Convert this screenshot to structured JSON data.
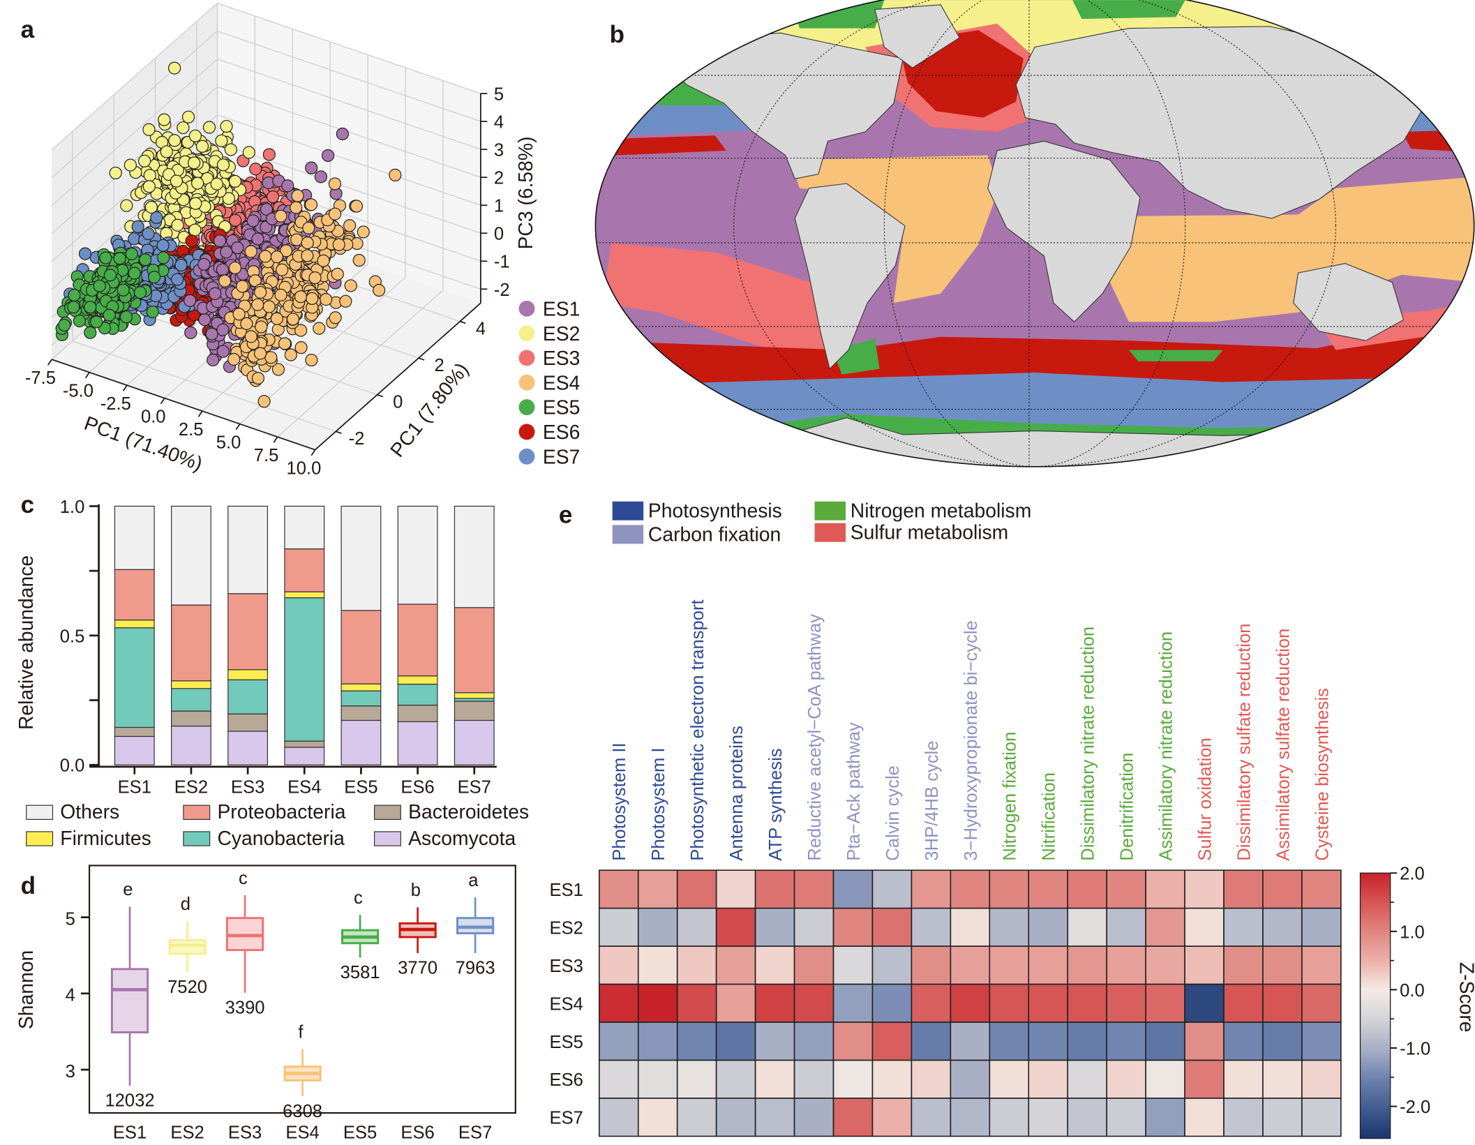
{
  "panels": {
    "a": "a",
    "b": "b",
    "c": "c",
    "d": "d",
    "e": "e"
  },
  "es_colors": {
    "ES1": "#a876ad",
    "ES2": "#f5f08c",
    "ES3": "#f07272",
    "ES4": "#f8c278",
    "ES5": "#47ad48",
    "ES6": "#c8190f",
    "ES7": "#6e8fc6"
  },
  "chart_data": [
    {
      "panel": "a",
      "type": "scatter3d",
      "xlabel": "PC1 (71.40%)",
      "ylabel": "PC1 (7.80%)",
      "zlabel": "PC3 (6.58%)",
      "xlim": [
        -7.5,
        10
      ],
      "ylim": [
        -3,
        5
      ],
      "zlim": [
        -2.5,
        5
      ],
      "xticks": [
        "-7.5",
        "-5.0",
        "-2.5",
        "0.0",
        "2.5",
        "5.0",
        "7.5",
        "10.0"
      ],
      "yticks": [
        "-2",
        "0",
        "2",
        "4"
      ],
      "zticks": [
        "5",
        "4",
        "3",
        "2",
        "1",
        "0",
        "-1",
        "-2"
      ],
      "grid": true,
      "legend": "right",
      "series": [
        {
          "name": "ES1",
          "color": "#a876ad",
          "center": [
            3,
            -1,
            1.2
          ],
          "spread": [
            0.7,
            1.5,
            1.1
          ]
        },
        {
          "name": "ES2",
          "color": "#f5f08c",
          "center": [
            -3.5,
            0.5,
            2.2
          ],
          "spread": [
            1.3,
            0.8,
            0.9
          ]
        },
        {
          "name": "ES3",
          "color": "#f07272",
          "center": [
            0,
            0.5,
            1.7
          ],
          "spread": [
            1.0,
            0.8,
            0.6
          ]
        },
        {
          "name": "ES4",
          "color": "#f8c278",
          "center": [
            5.5,
            -1,
            1.0
          ],
          "spread": [
            0.6,
            1.6,
            1.1
          ]
        },
        {
          "name": "ES5",
          "color": "#47ad48",
          "center": [
            -7,
            -1,
            -1.3
          ],
          "spread": [
            1.0,
            0.7,
            0.35
          ]
        },
        {
          "name": "ES6",
          "color": "#c8190f",
          "center": [
            -1.5,
            -0.5,
            -0.3
          ],
          "spread": [
            0.6,
            0.5,
            0.45
          ]
        },
        {
          "name": "ES7",
          "color": "#6e8fc6",
          "center": [
            -4,
            -1,
            -0.2
          ],
          "spread": [
            1.2,
            0.6,
            0.4
          ]
        }
      ]
    },
    {
      "panel": "b",
      "type": "map",
      "projection": "Robinson",
      "legend": "shared with panel a (ES1–ES7)",
      "land_color": "#d9d9d9"
    },
    {
      "panel": "c",
      "type": "bar",
      "stacked": true,
      "categories": [
        "ES1",
        "ES2",
        "ES3",
        "ES4",
        "ES5",
        "ES6",
        "ES7"
      ],
      "ylabel": "Relative abundance",
      "ylim": [
        0,
        1
      ],
      "yticks": [
        "0.0",
        "0.5",
        "1.0"
      ],
      "series": [
        {
          "name": "Ascomycota",
          "color": "#d8c8ec",
          "values": [
            0.11,
            0.15,
            0.13,
            0.068,
            0.172,
            0.167,
            0.172
          ]
        },
        {
          "name": "Bacteroidetes",
          "color": "#b8a898",
          "values": [
            0.035,
            0.058,
            0.067,
            0.024,
            0.056,
            0.064,
            0.074
          ]
        },
        {
          "name": "Cyanobacteria",
          "color": "#72cabb",
          "values": [
            0.385,
            0.087,
            0.132,
            0.554,
            0.058,
            0.081,
            0.011
          ]
        },
        {
          "name": "Firmicutes",
          "color": "#fded52",
          "values": [
            0.03,
            0.03,
            0.039,
            0.023,
            0.027,
            0.032,
            0.022
          ]
        },
        {
          "name": "Proteobacteria",
          "color": "#f09a8c",
          "values": [
            0.195,
            0.293,
            0.294,
            0.166,
            0.284,
            0.277,
            0.329
          ]
        },
        {
          "name": "Others",
          "color": "#f0f0f0",
          "values": [
            0.245,
            0.382,
            0.338,
            0.165,
            0.403,
            0.379,
            0.392
          ]
        }
      ],
      "legend_order": [
        "Others",
        "Proteobacteria",
        "Bacteroidetes",
        "Firmicutes",
        "Cyanobacteria",
        "Ascomycota"
      ]
    },
    {
      "panel": "d",
      "type": "box",
      "categories": [
        "ES1",
        "ES2",
        "ES3",
        "ES4",
        "ES5",
        "ES6",
        "ES7"
      ],
      "ylabel": "Shannon",
      "ylim": [
        2.47,
        5.65
      ],
      "yticks": [
        "3",
        "4",
        "5"
      ],
      "boxes": [
        {
          "name": "ES1",
          "whisker_low": 2.79,
          "q1": 3.49,
          "median": 4.05,
          "q3": 4.32,
          "whisker_high": 5.14,
          "letter": "e",
          "n": "12032"
        },
        {
          "name": "ES2",
          "whisker_low": 4.28,
          "q1": 4.52,
          "median": 4.63,
          "q3": 4.7,
          "whisker_high": 4.95,
          "letter": "d",
          "n": "7520"
        },
        {
          "name": "ES3",
          "whisker_low": 4.01,
          "q1": 4.57,
          "median": 4.76,
          "q3": 4.99,
          "whisker_high": 5.29,
          "letter": "c",
          "n": "3390"
        },
        {
          "name": "ES4",
          "whisker_low": 2.65,
          "q1": 2.86,
          "median": 2.95,
          "q3": 3.04,
          "whisker_high": 3.27,
          "letter": "f",
          "n": "6308"
        },
        {
          "name": "ES5",
          "whisker_low": 4.47,
          "q1": 4.66,
          "median": 4.74,
          "q3": 4.83,
          "whisker_high": 5.03,
          "letter": "c",
          "n": "3581"
        },
        {
          "name": "ES6",
          "whisker_low": 4.53,
          "q1": 4.74,
          "median": 4.84,
          "q3": 4.92,
          "whisker_high": 5.13,
          "letter": "b",
          "n": "3770"
        },
        {
          "name": "ES7",
          "whisker_low": 4.53,
          "q1": 4.79,
          "median": 4.87,
          "q3": 4.99,
          "whisker_high": 5.26,
          "letter": "a",
          "n": "7963"
        }
      ]
    },
    {
      "panel": "e",
      "type": "heatmap",
      "groups": [
        {
          "name": "Photosynthesis",
          "color": "#2e4a94"
        },
        {
          "name": "Carbon fixation",
          "color": "#8e93c0"
        },
        {
          "name": "Nitrogen metabolism",
          "color": "#5aaa3c"
        },
        {
          "name": "Sulfur metabolism",
          "color": "#e05a55"
        }
      ],
      "columns": [
        {
          "label": "Photosystem II",
          "group": 0
        },
        {
          "label": "Photosystem I",
          "group": 0
        },
        {
          "label": "Photosynthetic electron transport",
          "group": 0
        },
        {
          "label": "Antenna proteins",
          "group": 0
        },
        {
          "label": "ATP synthesis",
          "group": 0
        },
        {
          "label": "Reductive acetyl−CoA pathway",
          "group": 1
        },
        {
          "label": "Pta−Ack pathway",
          "group": 1
        },
        {
          "label": "Calvin cycle",
          "group": 1
        },
        {
          "label": "3HP/4HB cycle",
          "group": 1
        },
        {
          "label": "3−Hydroxypropionate bi−cycle",
          "group": 1
        },
        {
          "label": "Nitrogen fixation",
          "group": 2
        },
        {
          "label": "Nitrification",
          "group": 2
        },
        {
          "label": "Dissimilatory nitrate reduction",
          "group": 2
        },
        {
          "label": "Denitrification",
          "group": 2
        },
        {
          "label": "Assimilatory nitrate reduction",
          "group": 2
        },
        {
          "label": "Sulfur oxidation",
          "group": 3
        },
        {
          "label": "Dissimilatory sulfate reduction",
          "group": 3
        },
        {
          "label": "Assimilatory sulfate reduction",
          "group": 3
        },
        {
          "label": "Cysteine biosynthesis",
          "group": 3
        }
      ],
      "rows": [
        "ES1",
        "ES2",
        "ES3",
        "ES4",
        "ES5",
        "ES6",
        "ES7"
      ],
      "values": [
        [
          0.9,
          0.7,
          1.2,
          0.2,
          1.2,
          1.1,
          -1.3,
          -0.8,
          0.8,
          1.0,
          1.0,
          1.0,
          1.1,
          1.0,
          0.5,
          0.3,
          1.1,
          1.1,
          1.0
        ],
        [
          -0.6,
          -1.0,
          -0.7,
          1.6,
          -1.0,
          -0.6,
          1.0,
          1.2,
          -0.8,
          0.1,
          -0.9,
          -1.0,
          -0.3,
          -0.8,
          0.8,
          0.1,
          -0.8,
          -0.9,
          -1.0
        ],
        [
          0.3,
          0.1,
          0.3,
          0.7,
          0.2,
          0.9,
          -0.4,
          -0.8,
          0.9,
          0.7,
          0.7,
          0.7,
          0.8,
          0.7,
          0.6,
          0.4,
          0.9,
          0.9,
          0.7
        ],
        [
          1.9,
          2.0,
          1.6,
          0.7,
          1.7,
          1.6,
          -1.2,
          -1.4,
          1.4,
          1.7,
          1.5,
          1.5,
          1.5,
          1.4,
          1.3,
          -2.3,
          1.5,
          1.5,
          1.3
        ],
        [
          -1.2,
          -1.3,
          -1.5,
          -1.7,
          -1.0,
          -1.2,
          0.9,
          1.4,
          -1.6,
          -1.0,
          -1.5,
          -1.5,
          -1.6,
          -1.5,
          -1.7,
          0.9,
          -1.5,
          -1.6,
          -1.4
        ],
        [
          -0.4,
          -0.3,
          -0.2,
          -0.6,
          0.1,
          -0.6,
          -0.1,
          0.1,
          0.2,
          -1.0,
          0.1,
          0.2,
          -0.4,
          0.2,
          -0.1,
          1.1,
          0.1,
          0.1,
          0.2
        ],
        [
          -0.7,
          0.1,
          -0.6,
          -0.9,
          -0.8,
          -1.0,
          1.3,
          0.5,
          -0.8,
          -0.9,
          -0.6,
          -0.5,
          -0.7,
          -0.6,
          -1.2,
          0.1,
          -0.7,
          -0.6,
          -0.6
        ]
      ],
      "colorbar": {
        "label": "Z-Score",
        "range": [
          -2.55,
          2.0
        ],
        "ticks": [
          "2.0",
          "1.0",
          "0.0",
          "-1.0",
          "-2.0"
        ]
      }
    }
  ]
}
